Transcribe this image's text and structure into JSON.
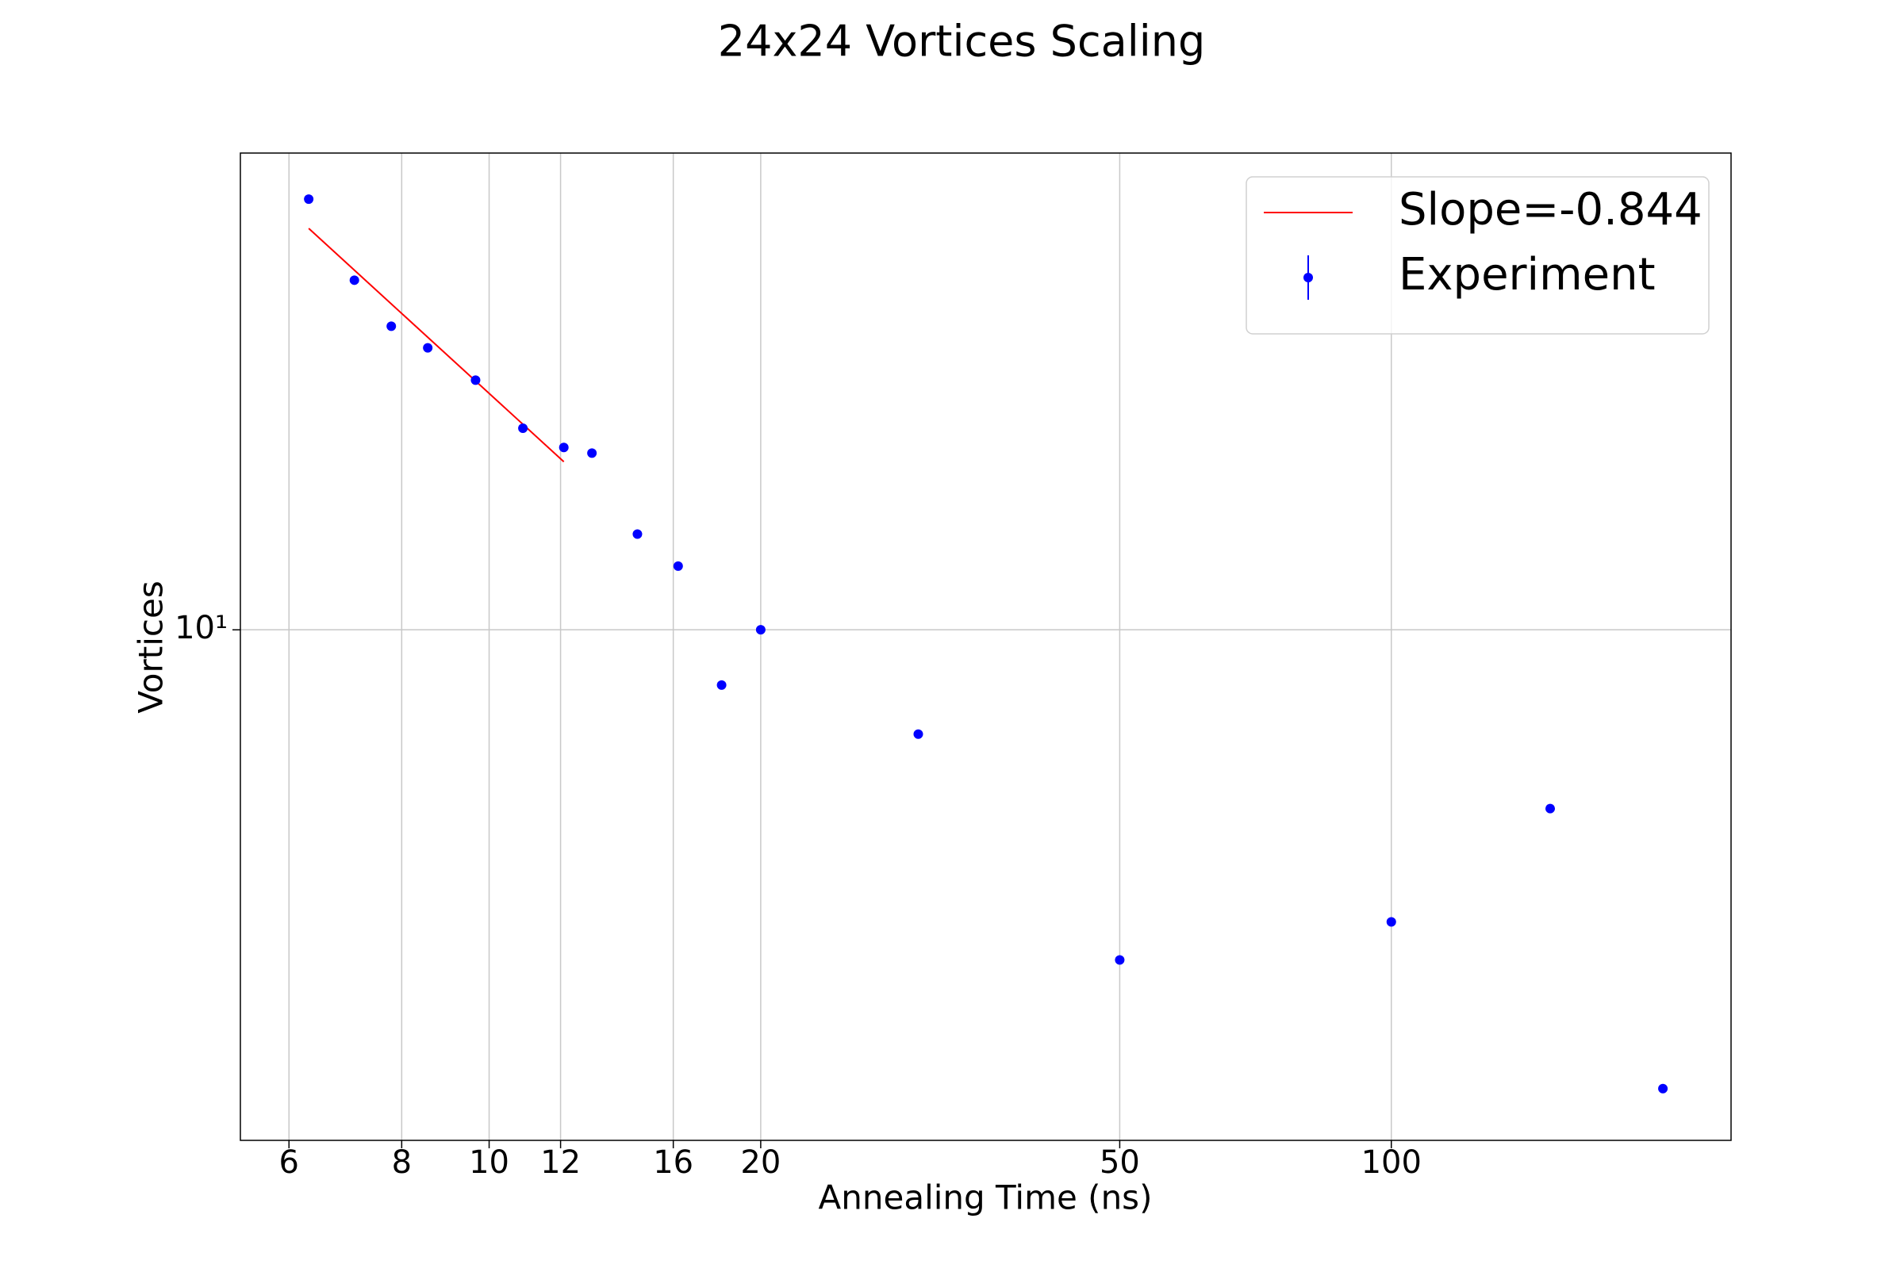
{
  "chart_data": {
    "type": "scatter",
    "title": "24x24 Vortices Scaling",
    "x_label": "Annealing Time (ns)",
    "y_label": "Vortices",
    "x_scale": "log",
    "y_scale": "log",
    "xlim": [
      5.3,
      238
    ],
    "ylim": [
      3.04,
      30.4
    ],
    "xticks": [
      6,
      8,
      10,
      12,
      16,
      20,
      50,
      100
    ],
    "yticks": [
      {
        "value": 10,
        "label": "10¹"
      }
    ],
    "grid": true,
    "legend": "upper right",
    "series": [
      {
        "name": "Slope=-0.844",
        "type": "line",
        "color": "#ff0000",
        "x": [
          6.31,
          12.1
        ],
        "values": [
          25.5,
          14.8
        ]
      },
      {
        "name": "Experiment",
        "type": "scatter",
        "color": "#0000ff",
        "x": [
          6.31,
          7.09,
          7.79,
          8.55,
          9.66,
          10.9,
          12.1,
          13.0,
          14.6,
          16.2,
          18.1,
          20,
          29.9,
          50,
          100,
          150,
          200
        ],
        "values": [
          27.3,
          22.6,
          20.3,
          19.3,
          17.9,
          16.0,
          15.3,
          15.1,
          12.5,
          11.6,
          8.79,
          10,
          7.84,
          4.63,
          5.06,
          6.59,
          3.43
        ]
      }
    ]
  }
}
